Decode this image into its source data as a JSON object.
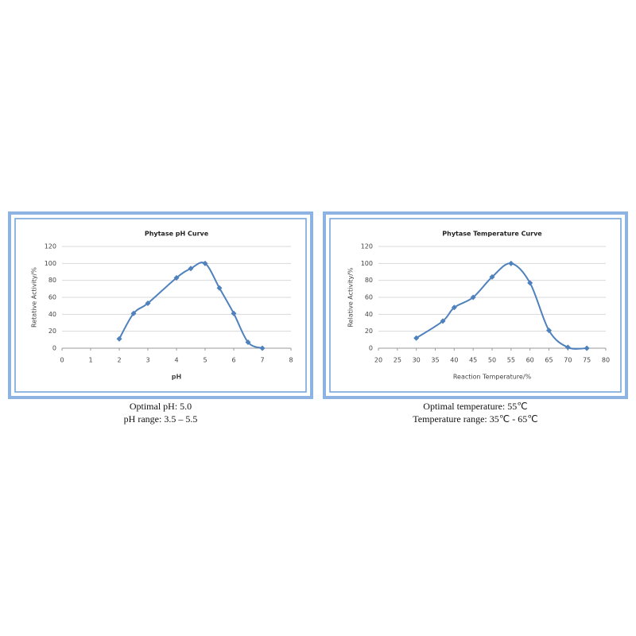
{
  "chart_data": [
    {
      "type": "scatter",
      "title": "Phytase pH Curve",
      "x_label": "pH",
      "y_label": "Retative Activity/%",
      "series": [
        {
          "name": "pH",
          "color": "#4f81bd",
          "x": [
            2,
            2.5,
            3,
            4,
            4.5,
            5,
            5.5,
            6,
            6.5,
            7
          ],
          "values": [
            11,
            41,
            53,
            83,
            94,
            100,
            71,
            41,
            7,
            0
          ]
        }
      ],
      "xlim": [
        0,
        8
      ],
      "xticks": [
        0,
        1,
        2,
        3,
        4,
        5,
        6,
        7,
        8
      ],
      "ylim": [
        0,
        120
      ],
      "yticks": [
        0,
        20,
        40,
        60,
        80,
        100,
        120
      ],
      "grid": true,
      "smooth": true
    },
    {
      "type": "scatter",
      "title": "Phytase Temperature Curve",
      "x_label": "Reaction Temperature/%",
      "y_label": "Relative Activity/%",
      "series": [
        {
          "name": "Temperature",
          "color": "#4f81bd",
          "x": [
            30,
            37,
            40,
            45,
            50,
            55,
            60,
            65,
            70,
            75
          ],
          "values": [
            12,
            32,
            48,
            60,
            84,
            100,
            77,
            21,
            1,
            0
          ]
        }
      ],
      "xlim": [
        20,
        80
      ],
      "xticks": [
        20,
        25,
        30,
        35,
        40,
        45,
        50,
        55,
        60,
        65,
        70,
        75,
        80
      ],
      "ylim": [
        0,
        120
      ],
      "yticks": [
        0,
        20,
        40,
        60,
        80,
        100,
        120
      ],
      "grid": true,
      "smooth": true
    }
  ],
  "captions": [
    [
      "Optimal pH: 5.0",
      "pH range: 3.5 – 5.5"
    ],
    [
      "Optimal temperature: 55℃",
      "Temperature range: 35℃ - 65℃"
    ]
  ]
}
